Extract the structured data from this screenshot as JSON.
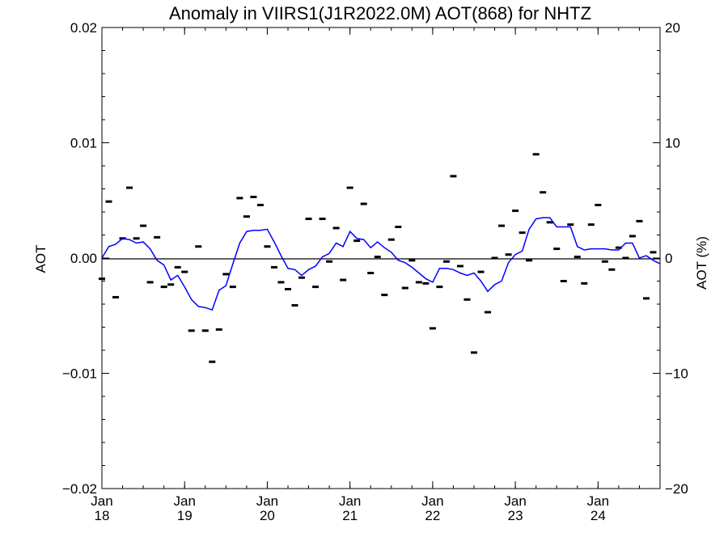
{
  "chart_data": {
    "type": "line",
    "title": "Anomaly in VIIRS1(J1R2022.0M) AOT(868) for NHTZ",
    "ylabel_left": "AOT",
    "ylabel_right": "AOT (%)",
    "xlim": [
      "2018-01-01",
      "2024-10-01"
    ],
    "ylim_left": [
      -0.02,
      0.02
    ],
    "ylim_right": [
      -20,
      20
    ],
    "grid": false,
    "reference_line_y": 0,
    "x_ticks": [
      {
        "date": "2018-01-01",
        "month": "Jan",
        "year": "18"
      },
      {
        "date": "2019-01-01",
        "month": "Jan",
        "year": "19"
      },
      {
        "date": "2020-01-01",
        "month": "Jan",
        "year": "20"
      },
      {
        "date": "2021-01-01",
        "month": "Jan",
        "year": "21"
      },
      {
        "date": "2022-01-01",
        "month": "Jan",
        "year": "22"
      },
      {
        "date": "2023-01-01",
        "month": "Jan",
        "year": "23"
      },
      {
        "date": "2024-01-01",
        "month": "Jan",
        "year": "24"
      }
    ],
    "y_ticks_left": [
      {
        "value": 0.02,
        "label": "0.02"
      },
      {
        "value": 0.01,
        "label": "0.01"
      },
      {
        "value": 0.0,
        "label": "0.00"
      },
      {
        "value": -0.01,
        "label": "−0.01"
      },
      {
        "value": -0.02,
        "label": "−0.02"
      }
    ],
    "y_ticks_right": [
      {
        "value": 20,
        "label": "20"
      },
      {
        "value": 10,
        "label": "10"
      },
      {
        "value": 0,
        "label": "0"
      },
      {
        "value": -10,
        "label": "−10"
      },
      {
        "value": -20,
        "label": "−20"
      }
    ],
    "colors": {
      "smoothed": "#0000ff",
      "monthly": "#000000",
      "axes": "#000000"
    },
    "series": [
      {
        "style": "dash-markers",
        "x": [
          "2018-01",
          "2018-02",
          "2018-03",
          "2018-04",
          "2018-05",
          "2018-06",
          "2018-07",
          "2018-08",
          "2018-09",
          "2018-10",
          "2018-11",
          "2018-12",
          "2019-01",
          "2019-02",
          "2019-03",
          "2019-04",
          "2019-05",
          "2019-06",
          "2019-07",
          "2019-08",
          "2019-09",
          "2019-10",
          "2019-11",
          "2019-12",
          "2020-01",
          "2020-02",
          "2020-03",
          "2020-04",
          "2020-05",
          "2020-06",
          "2020-07",
          "2020-08",
          "2020-09",
          "2020-10",
          "2020-11",
          "2020-12",
          "2021-01",
          "2021-02",
          "2021-03",
          "2021-04",
          "2021-05",
          "2021-06",
          "2021-07",
          "2021-08",
          "2021-09",
          "2021-10",
          "2021-11",
          "2021-12",
          "2022-01",
          "2022-02",
          "2022-03",
          "2022-04",
          "2022-05",
          "2022-06",
          "2022-07",
          "2022-08",
          "2022-09",
          "2022-10",
          "2022-11",
          "2022-12",
          "2023-01",
          "2023-02",
          "2023-03",
          "2023-04",
          "2023-05",
          "2023-06",
          "2023-07",
          "2023-08",
          "2023-09",
          "2023-10",
          "2023-11",
          "2023-12",
          "2024-01",
          "2024-02",
          "2024-03",
          "2024-04",
          "2024-05",
          "2024-06",
          "2024-07",
          "2024-08",
          "2024-09"
        ],
        "values": [
          -0.0018,
          0.0049,
          -0.0034,
          0.0017,
          0.0061,
          0.0017,
          0.0028,
          -0.0021,
          0.0018,
          -0.0025,
          -0.0023,
          -0.0008,
          -0.0012,
          -0.0063,
          0.001,
          -0.0063,
          -0.009,
          -0.0062,
          -0.0014,
          -0.0025,
          0.0052,
          0.0036,
          0.0053,
          0.0046,
          0.001,
          -0.0008,
          -0.0021,
          -0.0027,
          -0.0041,
          -0.0017,
          0.0034,
          -0.0025,
          0.0034,
          -0.0003,
          0.0026,
          -0.0019,
          0.0061,
          0.0015,
          0.0047,
          -0.0013,
          0.0001,
          -0.0032,
          0.0016,
          0.0027,
          -0.0026,
          -0.0002,
          -0.0021,
          -0.0022,
          -0.0061,
          -0.0025,
          -0.0003,
          0.0071,
          -0.0007,
          -0.0036,
          -0.0082,
          -0.0012,
          -0.0047,
          0.0,
          0.0028,
          0.0003,
          0.0041,
          0.0022,
          -0.0002,
          0.009,
          0.0057,
          0.0031,
          0.0008,
          -0.002,
          0.0029,
          0.0001,
          -0.0022,
          0.0029,
          0.0046,
          -0.0003,
          -0.001,
          0.0009,
          0.0,
          0.0019,
          0.0032,
          -0.0035,
          0.0005
        ]
      },
      {
        "style": "line",
        "x": [
          "2018-01",
          "2018-02",
          "2018-03",
          "2018-04",
          "2018-05",
          "2018-06",
          "2018-07",
          "2018-08",
          "2018-09",
          "2018-10",
          "2018-11",
          "2018-12",
          "2019-01",
          "2019-02",
          "2019-03",
          "2019-04",
          "2019-05",
          "2019-06",
          "2019-07",
          "2019-08",
          "2019-09",
          "2019-10",
          "2019-11",
          "2019-12",
          "2020-01",
          "2020-02",
          "2020-03",
          "2020-04",
          "2020-05",
          "2020-06",
          "2020-07",
          "2020-08",
          "2020-09",
          "2020-10",
          "2020-11",
          "2020-12",
          "2021-01",
          "2021-02",
          "2021-03",
          "2021-04",
          "2021-05",
          "2021-06",
          "2021-07",
          "2021-08",
          "2021-09",
          "2021-10",
          "2021-11",
          "2021-12",
          "2022-01",
          "2022-02",
          "2022-03",
          "2022-04",
          "2022-05",
          "2022-06",
          "2022-07",
          "2022-08",
          "2022-09",
          "2022-10",
          "2022-11",
          "2022-12",
          "2023-01",
          "2023-02",
          "2023-03",
          "2023-04",
          "2023-05",
          "2023-06",
          "2023-07",
          "2023-08",
          "2023-09",
          "2023-10",
          "2023-11",
          "2023-12",
          "2024-01",
          "2024-02",
          "2024-03",
          "2024-04",
          "2024-05",
          "2024-06",
          "2024-07",
          "2024-08",
          "2024-09",
          "2024-10"
        ],
        "values": [
          0.0,
          0.001,
          0.0012,
          0.0017,
          0.0016,
          0.0013,
          0.0014,
          0.0008,
          -0.0002,
          -0.0006,
          -0.0019,
          -0.0015,
          -0.0025,
          -0.0036,
          -0.0042,
          -0.0043,
          -0.0045,
          -0.0028,
          -0.0024,
          -0.0005,
          0.0013,
          0.0023,
          0.0024,
          0.0024,
          0.0025,
          0.0014,
          0.0002,
          -0.0009,
          -0.001,
          -0.0015,
          -0.001,
          -0.0007,
          0.0001,
          0.0004,
          0.0013,
          0.001,
          0.0023,
          0.0017,
          0.0016,
          0.0009,
          0.0014,
          0.0009,
          0.0005,
          -0.0002,
          -0.0004,
          -0.0008,
          -0.0013,
          -0.0018,
          -0.0021,
          -0.0009,
          -0.0009,
          -0.001,
          -0.0013,
          -0.0015,
          -0.0013,
          -0.002,
          -0.0029,
          -0.0023,
          -0.002,
          -0.0004,
          0.0003,
          0.0006,
          0.0025,
          0.0034,
          0.0035,
          0.0035,
          0.0027,
          0.0027,
          0.0027,
          0.001,
          0.0007,
          0.0008,
          0.0008,
          0.0008,
          0.0007,
          0.0007,
          0.0013,
          0.0013,
          0.0,
          0.0002,
          -0.0002,
          -0.0005
        ]
      }
    ]
  }
}
